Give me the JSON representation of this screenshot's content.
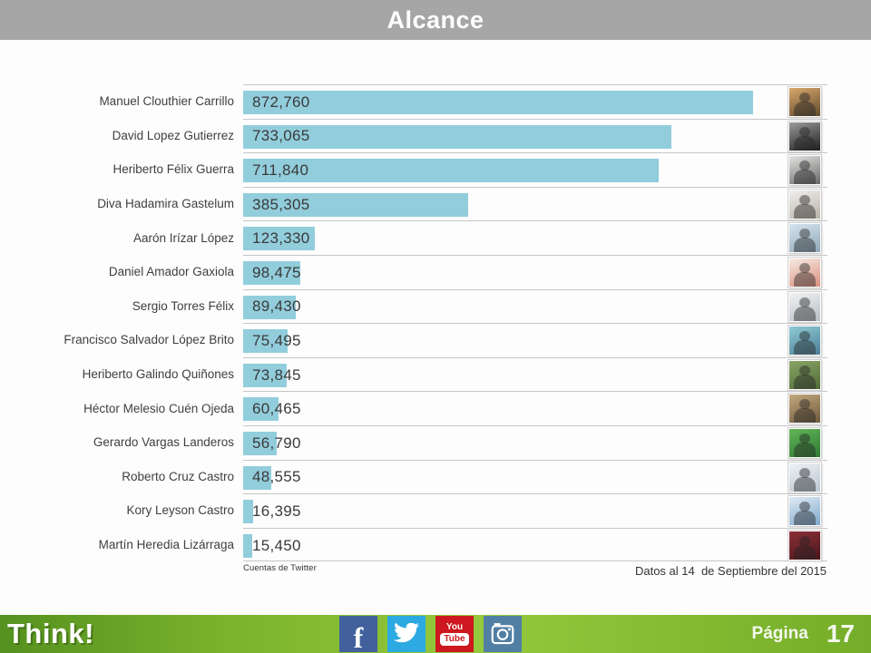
{
  "header": {
    "title": "Alcance",
    "bg_color": "#a6a6a6"
  },
  "chart_data": {
    "type": "bar",
    "orientation": "horizontal",
    "title": "Alcance",
    "categories": [
      "Manuel Clouthier Carrillo",
      "David Lopez Gutierrez",
      "Heriberto Félix Guerra",
      "Diva Hadamira Gastelum",
      "Aarón Irízar López",
      "Daniel Amador Gaxiola",
      "Sergio Torres Félix",
      "Francisco Salvador López Brito",
      "Heriberto Galindo Quiñones",
      "Héctor Melesio Cuén Ojeda",
      "Gerardo Vargas Landeros",
      "Roberto Cruz Castro",
      "Kory Leyson Castro",
      "Martín Heredia Lizárraga"
    ],
    "values": [
      872760,
      733065,
      711840,
      385305,
      123330,
      98475,
      89430,
      75495,
      73845,
      60465,
      56790,
      48555,
      16395,
      15450
    ],
    "value_labels": [
      "872,760",
      "733,065",
      "711,840",
      "385,305",
      "123,330",
      "98,475",
      "89,430",
      "75,495",
      "73,845",
      "60,465",
      "56,790",
      "48,555",
      "16,395",
      "15,450"
    ],
    "xlabel": "Cuentas de Twitter",
    "xlim": [
      0,
      1000000
    ],
    "bar_color": "#92cddc",
    "grid": "horizontal-separators",
    "legend": false,
    "avatar_colors": [
      [
        "#d9a86a",
        "#5f4a2e"
      ],
      [
        "#9a9a9a",
        "#1e1e1e"
      ],
      [
        "#e3e3e1",
        "#6a6a6a"
      ],
      [
        "#efefed",
        "#b9b2a8"
      ],
      [
        "#d6e4ee",
        "#8fa8b8"
      ],
      [
        "#f6ece4",
        "#d98f7e"
      ],
      [
        "#f0f2f4",
        "#b9bfc6"
      ],
      [
        "#8ec9d4",
        "#4c7f96"
      ],
      [
        "#8aa566",
        "#4f6b38"
      ],
      [
        "#c3a87e",
        "#6e5a3c"
      ],
      [
        "#62b457",
        "#2f7a34"
      ],
      [
        "#eef2f6",
        "#b9c5cf"
      ],
      [
        "#dfeaf4",
        "#7fa8cc"
      ],
      [
        "#8c3038",
        "#4a161c"
      ]
    ]
  },
  "chart_notes": {
    "source_label": "Cuentas de Twitter",
    "footnote": "Datos al 14  de Septiembre del 2015"
  },
  "footer": {
    "brand": "Think!",
    "page_label": "Página",
    "page_number": "17",
    "icons": [
      {
        "name": "facebook",
        "color": "#41609c"
      },
      {
        "name": "twitter",
        "color": "#2caae1"
      },
      {
        "name": "youtube",
        "color": "#cc181e",
        "you": "You",
        "tube": "Tube"
      },
      {
        "name": "instagram",
        "color": "#517fa4"
      }
    ]
  }
}
